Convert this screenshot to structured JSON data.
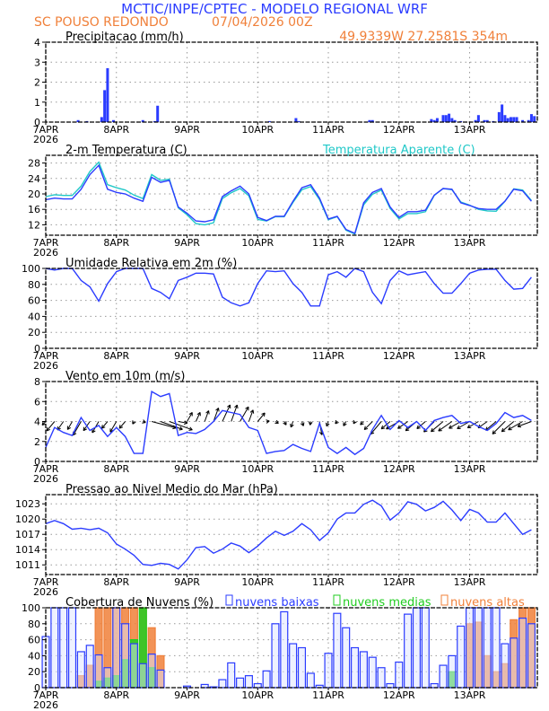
{
  "header": {
    "title": "MCTIC/INPE/CPTEC - MODELO REGIONAL WRF",
    "location": "SC POUSO REDONDO",
    "run": "07/04/2026 00Z",
    "coords": "49.9339W 27.2581S 354m"
  },
  "colors": {
    "title": "#2b3cff",
    "orange": "#f0803a",
    "blue": "#2b3cff",
    "cyan": "#20c8c8",
    "green": "#20cc20",
    "black": "#000000"
  },
  "x_axis": {
    "tick_labels": [
      "7APR",
      "8APR",
      "9APR",
      "10APR",
      "11APR",
      "12APR",
      "13APR"
    ],
    "year_label": "2026",
    "unit": "hours since 7APR 00Z",
    "range_hours": [
      0,
      167
    ],
    "step_hours": 3
  },
  "chart_data": [
    {
      "id": "precip",
      "type": "bar",
      "title": "Precipitacao (mm/h)",
      "ylim": [
        0,
        4
      ],
      "yticks": [
        0,
        1,
        2,
        3,
        4
      ],
      "grid": true,
      "hours": [
        11,
        14,
        19,
        20,
        21,
        23,
        33,
        37,
        38,
        76,
        85,
        86,
        110,
        111,
        131,
        132,
        133,
        135,
        136,
        137,
        138,
        139,
        141,
        146,
        147,
        149,
        150,
        152,
        154,
        155,
        156,
        157,
        158,
        159,
        160,
        162,
        164,
        165,
        166
      ],
      "values": [
        0.1,
        0.05,
        0.25,
        1.6,
        2.7,
        0.1,
        0.1,
        0.05,
        0.82,
        0.05,
        0.2,
        0.05,
        0.1,
        0.1,
        0.15,
        0.1,
        0.2,
        0.35,
        0.35,
        0.42,
        0.2,
        0.1,
        0.05,
        0.1,
        0.35,
        0.1,
        0.1,
        0.05,
        0.5,
        0.88,
        0.35,
        0.2,
        0.25,
        0.25,
        0.25,
        0.1,
        0.1,
        0.4,
        0.3
      ]
    },
    {
      "id": "temp",
      "type": "line",
      "title": "2-m Temperatura (C)",
      "ylim": [
        9.3,
        30
      ],
      "yticks": [
        12,
        16,
        20,
        24,
        28
      ],
      "grid": true,
      "series": [
        {
          "name": "2-m Temperatura (C)",
          "color": "#2b3cff",
          "values": [
            18.5,
            18.9,
            18.7,
            18.7,
            21.2,
            25,
            27.4,
            21.2,
            20.4,
            20,
            18.9,
            18.1,
            24.3,
            23,
            23.5,
            16.6,
            15,
            13,
            12.8,
            13.3,
            19.3,
            20.8,
            22,
            20,
            13.9,
            13.1,
            14.2,
            14.2,
            18.1,
            21.6,
            22.4,
            18.9,
            13.5,
            14.2,
            10.8,
            9.8,
            17.7,
            20.4,
            21.4,
            16.6,
            13.9,
            15.4,
            15.4,
            15.8,
            19.7,
            21.4,
            21.2,
            17.7,
            17,
            16.2,
            16,
            16,
            18.1,
            21.2,
            20.8,
            18.1
          ]
        },
        {
          "name": "Temperatura Aparente (C)",
          "color": "#20c8c8",
          "values": [
            19.3,
            19.8,
            19.6,
            19.6,
            22,
            25.8,
            28.2,
            22.4,
            21.6,
            21,
            19.7,
            18.8,
            25,
            23.5,
            23.8,
            16.4,
            14.6,
            12.3,
            12,
            12.5,
            18.8,
            20.3,
            21.4,
            19.5,
            13.4,
            13,
            14.1,
            14.1,
            17.8,
            21.1,
            21.9,
            18.5,
            13.3,
            14.1,
            10.6,
            9.6,
            17.2,
            19.9,
            21,
            16.2,
            13.5,
            14.9,
            14.9,
            15.4,
            19.6,
            21.4,
            21.1,
            17.9,
            17.1,
            16,
            15.6,
            15.5,
            18.1,
            21.3,
            21,
            18.3
          ]
        }
      ]
    },
    {
      "id": "rh",
      "type": "line",
      "title": "Umidade Relativa em 2m (%)",
      "ylim": [
        0,
        100
      ],
      "yticks": [
        0,
        20,
        40,
        60,
        80,
        100
      ],
      "grid": true,
      "series": [
        {
          "color": "#2b3cff",
          "values": [
            100,
            98,
            100,
            100,
            85,
            77,
            59,
            81,
            96,
            100,
            100,
            100,
            75,
            70,
            62,
            85,
            89,
            94,
            94,
            93,
            64,
            57,
            53,
            57,
            81,
            97,
            96,
            97,
            81,
            70,
            53,
            53,
            92,
            96,
            89,
            100,
            96,
            70,
            56,
            85,
            97,
            92,
            94,
            96,
            81,
            69,
            69,
            81,
            94,
            98,
            99,
            99,
            85,
            74,
            75,
            89
          ]
        }
      ]
    },
    {
      "id": "wind",
      "type": "line",
      "title": "Vento em 10m (m/s)",
      "ylim": [
        0,
        8
      ],
      "yticks": [
        0,
        2,
        4,
        6,
        8
      ],
      "grid": true,
      "vector_baseline": 4,
      "series": [
        {
          "color": "#2b3cff",
          "values": [
            1.4,
            3.4,
            2.9,
            2.6,
            4.4,
            3.1,
            3.6,
            2.5,
            3.4,
            2.5,
            0.8,
            0.8,
            7,
            6.5,
            6.8,
            2.6,
            2.9,
            2.8,
            3.2,
            4,
            5.1,
            4.9,
            4.7,
            3.4,
            3.1,
            0.8,
            1,
            1.1,
            1.7,
            1.3,
            1,
            3.8,
            1.4,
            0.8,
            1.4,
            0.7,
            1.3,
            3.2,
            4.6,
            3.2,
            4.1,
            3.4,
            4,
            3.1,
            4.1,
            4.4,
            4.6,
            3.8,
            4,
            3.5,
            3.1,
            3.8,
            4.9,
            4.4,
            4.6,
            4.1
          ]
        }
      ],
      "direction_deg": [
        45,
        40,
        35,
        30,
        30,
        35,
        30,
        40,
        30,
        40,
        30,
        290,
        285,
        290,
        290,
        280,
        210,
        205,
        200,
        200,
        205,
        200,
        210,
        200,
        220,
        260,
        300,
        330,
        20,
        340,
        10,
        350,
        20,
        40,
        30,
        30,
        45,
        45,
        40,
        50,
        60,
        55,
        50,
        50,
        45,
        50,
        55,
        60,
        60,
        60,
        55,
        50,
        45,
        50,
        60,
        70
      ]
    },
    {
      "id": "pressure",
      "type": "line",
      "title": "Pressao ao Nivel Medio do Mar (hPa)",
      "ylim": [
        1009.1,
        1024.8
      ],
      "yticks": [
        1011,
        1014,
        1017,
        1020,
        1023
      ],
      "grid": true,
      "series": [
        {
          "color": "#2b3cff",
          "values": [
            1019.1,
            1019.7,
            1019.1,
            1018,
            1018.2,
            1017.9,
            1018.2,
            1017.3,
            1015.1,
            1014.1,
            1012.9,
            1011.1,
            1010.9,
            1011.3,
            1011.1,
            1010.2,
            1012,
            1014.4,
            1014.6,
            1013.3,
            1014.1,
            1015.3,
            1014.7,
            1013.4,
            1014.7,
            1016.3,
            1017.6,
            1016.8,
            1017.6,
            1019.1,
            1017.9,
            1015.8,
            1017.3,
            1020,
            1021.2,
            1021.2,
            1022.9,
            1023.7,
            1022.6,
            1019.8,
            1021.2,
            1023.4,
            1022.9,
            1021.6,
            1022.3,
            1023.5,
            1021.8,
            1019.7,
            1021.9,
            1021.2,
            1019.4,
            1019.4,
            1021.2,
            1019.1,
            1017,
            1017.9
          ]
        }
      ]
    },
    {
      "id": "clouds",
      "type": "bar",
      "title": "Cobertura de Nuvens (%)",
      "ylim": [
        0,
        100
      ],
      "yticks": [
        0,
        20,
        40,
        60,
        80,
        100
      ],
      "grid": true,
      "series": [
        {
          "name": "nuvens baixas",
          "color": "#2b3cff",
          "values": [
            64,
            100,
            100,
            100,
            45,
            53,
            41,
            25,
            100,
            80,
            55,
            30,
            42,
            22,
            0,
            0,
            2,
            0,
            4,
            1,
            10,
            31,
            12,
            15,
            5,
            21,
            80,
            95,
            55,
            50,
            18,
            3,
            43,
            93,
            75,
            50,
            45,
            38,
            25,
            5,
            32,
            92,
            100,
            100,
            5,
            28,
            40,
            77,
            100,
            100,
            100,
            100,
            55,
            62,
            87,
            80
          ]
        },
        {
          "name": "nuvens medias",
          "color": "#20cc20",
          "values": [
            0,
            0,
            0,
            0,
            0,
            0,
            8,
            12,
            15,
            35,
            60,
            100,
            25,
            0,
            0,
            0,
            0,
            0,
            0,
            0,
            0,
            0,
            0,
            0,
            0,
            0,
            0,
            0,
            0,
            0,
            0,
            0,
            0,
            0,
            0,
            0,
            0,
            0,
            0,
            0,
            0,
            0,
            0,
            0,
            0,
            0,
            20,
            0,
            0,
            0,
            0,
            0,
            0,
            0,
            0,
            0
          ]
        },
        {
          "name": "nuvens altas",
          "color": "#f0803a",
          "values": [
            0,
            0,
            0,
            0,
            15,
            28,
            100,
            100,
            100,
            100,
            100,
            100,
            75,
            40,
            0,
            0,
            0,
            0,
            0,
            0,
            0,
            0,
            0,
            0,
            0,
            0,
            0,
            0,
            0,
            0,
            0,
            0,
            0,
            0,
            0,
            0,
            0,
            0,
            0,
            0,
            0,
            0,
            0,
            0,
            0,
            0,
            0,
            0,
            80,
            82,
            40,
            20,
            30,
            85,
            100,
            100
          ]
        }
      ]
    }
  ]
}
